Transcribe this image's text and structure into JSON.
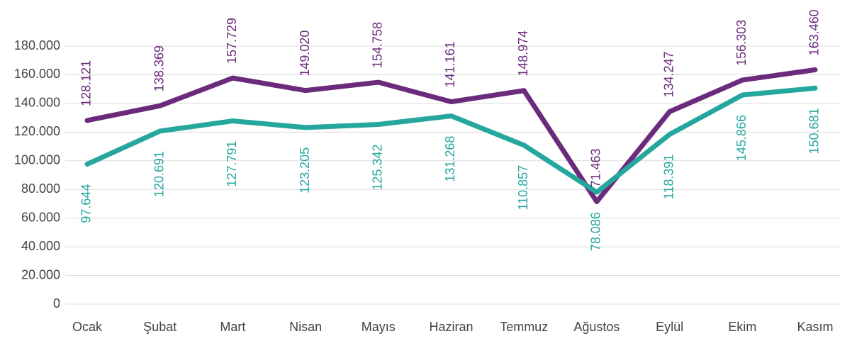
{
  "chart_data": {
    "type": "line",
    "categories": [
      "Ocak",
      "Şubat",
      "Mart",
      "Nisan",
      "Mayıs",
      "Haziran",
      "Temmuz",
      "Ağustos",
      "Eylül",
      "Ekim",
      "Kasım"
    ],
    "series": [
      {
        "color": "#6b2a7b",
        "values": [
          128121,
          138369,
          157729,
          149020,
          154758,
          141161,
          148974,
          71463,
          134247,
          156303,
          163460
        ],
        "value_labels": [
          "128.121",
          "138.369",
          "157.729",
          "149.020",
          "154.758",
          "141.161",
          "148.974",
          "71.463",
          "134.247",
          "156.303",
          "163.460"
        ]
      },
      {
        "color": "#25a79e",
        "values": [
          97644,
          120691,
          127791,
          123205,
          125342,
          131268,
          110857,
          78086,
          118391,
          145866,
          150681
        ],
        "value_labels": [
          "97.644",
          "120.691",
          "127.791",
          "123.205",
          "125.342",
          "131.268",
          "110.857",
          "78.086",
          "118.391",
          "145.866",
          "150.681"
        ]
      }
    ],
    "ylim": [
      0,
      180000
    ],
    "yticks": [
      0,
      {
        "value": 20000,
        "label": "20.000"
      },
      {
        "value": 40000,
        "label": "40.000"
      },
      {
        "value": 60000,
        "label": "60.000"
      },
      {
        "value": 80000,
        "label": "80.000"
      },
      {
        "value": 100000,
        "label": "100.000"
      },
      {
        "value": 120000,
        "label": "120.000"
      },
      {
        "value": 140000,
        "label": "140.000"
      },
      {
        "value": 160000,
        "label": "160.000"
      },
      {
        "value": 180000,
        "label": "180.000"
      }
    ],
    "grid": true
  }
}
